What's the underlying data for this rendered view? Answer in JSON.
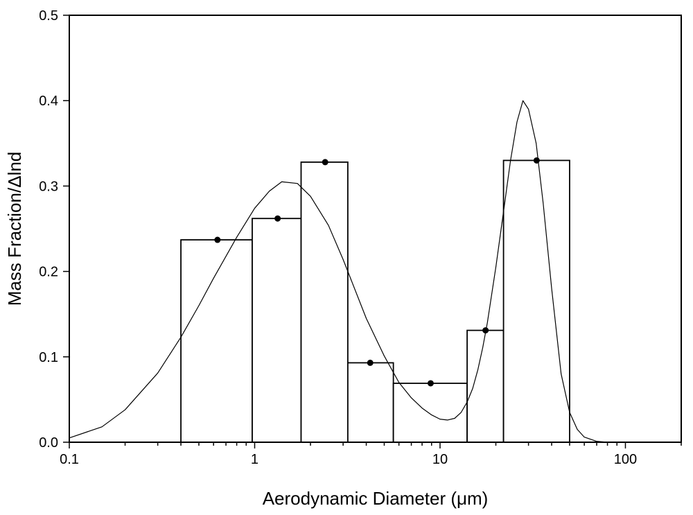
{
  "chart_data": {
    "type": "bar",
    "title": "",
    "xlabel": "Aerodynamic Diameter (μm)",
    "ylabel": "Mass Fraction/Δlnd",
    "x_scale": "log",
    "xlim": [
      0.1,
      200
    ],
    "ylim": [
      0,
      0.5
    ],
    "x_ticks": [
      0.1,
      1,
      10,
      100
    ],
    "x_tick_labels": [
      "0.1",
      "1",
      "10",
      "100"
    ],
    "y_ticks": [
      0,
      0.1,
      0.2,
      0.3,
      0.4,
      0.5
    ],
    "y_tick_labels": [
      "0.0",
      "0.1",
      "0.2",
      "0.3",
      "0.4",
      "0.5"
    ],
    "grid": false,
    "legend": "none",
    "bins": [
      {
        "x_start": 0.4,
        "x_end": 0.97,
        "value": 0.237
      },
      {
        "x_start": 0.97,
        "x_end": 1.78,
        "value": 0.262
      },
      {
        "x_start": 1.78,
        "x_end": 3.18,
        "value": 0.328
      },
      {
        "x_start": 3.18,
        "x_end": 5.6,
        "value": 0.093
      },
      {
        "x_start": 5.6,
        "x_end": 14.0,
        "value": 0.069
      },
      {
        "x_start": 14.0,
        "x_end": 22.0,
        "value": 0.131
      },
      {
        "x_start": 22.0,
        "x_end": 50.0,
        "value": 0.33
      }
    ],
    "points": [
      {
        "x": 0.63,
        "y": 0.237
      },
      {
        "x": 1.33,
        "y": 0.262
      },
      {
        "x": 2.4,
        "y": 0.328
      },
      {
        "x": 4.2,
        "y": 0.093
      },
      {
        "x": 8.9,
        "y": 0.069
      },
      {
        "x": 17.6,
        "y": 0.131
      },
      {
        "x": 33.2,
        "y": 0.33
      }
    ],
    "fit_curve": {
      "type": "bimodal lognormal",
      "x": [
        0.1,
        0.15,
        0.2,
        0.3,
        0.4,
        0.5,
        0.6,
        0.8,
        1.0,
        1.2,
        1.4,
        1.7,
        2.0,
        2.5,
        3.0,
        4.0,
        5.0,
        6.0,
        7.0,
        8.0,
        9.0,
        10.0,
        11.0,
        12.0,
        13.0,
        14.0,
        15.0,
        16.0,
        17.0,
        18.0,
        20.0,
        22.0,
        24.0,
        26.0,
        28.0,
        30.0,
        33.0,
        36.0,
        40.0,
        45.0,
        50.0,
        55.0,
        60.0,
        70.0,
        80.0
      ],
      "y": [
        0.005,
        0.018,
        0.038,
        0.081,
        0.123,
        0.16,
        0.192,
        0.24,
        0.274,
        0.294,
        0.305,
        0.303,
        0.288,
        0.254,
        0.214,
        0.145,
        0.101,
        0.07,
        0.052,
        0.04,
        0.032,
        0.027,
        0.026,
        0.028,
        0.035,
        0.047,
        0.063,
        0.085,
        0.111,
        0.14,
        0.205,
        0.27,
        0.33,
        0.375,
        0.4,
        0.39,
        0.35,
        0.28,
        0.18,
        0.08,
        0.035,
        0.015,
        0.006,
        0.001,
        0.0
      ]
    }
  }
}
